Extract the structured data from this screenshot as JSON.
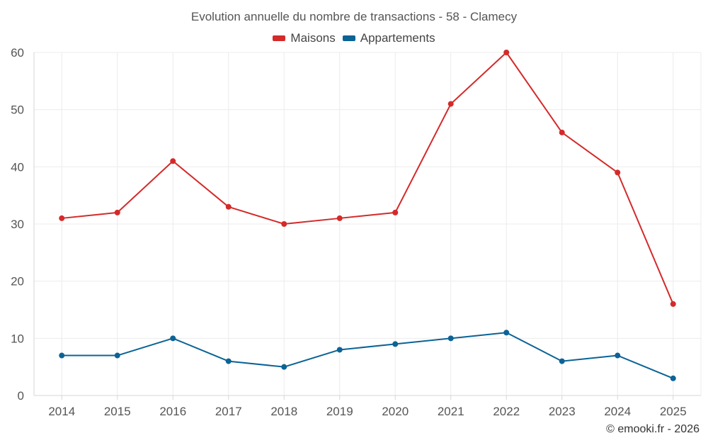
{
  "chart_data": {
    "type": "line",
    "title": "Evolution annuelle du nombre de transactions - 58 - Clamecy",
    "x": [
      "2014",
      "2015",
      "2016",
      "2017",
      "2018",
      "2019",
      "2020",
      "2021",
      "2022",
      "2023",
      "2024",
      "2025"
    ],
    "series": [
      {
        "name": "Maisons",
        "color": "#d42a2a",
        "values": [
          31,
          32,
          41,
          33,
          30,
          31,
          32,
          51,
          60,
          46,
          39,
          16
        ]
      },
      {
        "name": "Appartements",
        "color": "#0b6396",
        "values": [
          7,
          7,
          10,
          6,
          5,
          8,
          9,
          10,
          11,
          6,
          7,
          3
        ]
      }
    ],
    "ylim": [
      0,
      60
    ],
    "yticks": [
      0,
      10,
      20,
      30,
      40,
      50,
      60
    ],
    "xlabel": "",
    "ylabel": "",
    "grid": true,
    "legend_position": "top-center"
  },
  "credit": "© emooki.fr - 2026"
}
